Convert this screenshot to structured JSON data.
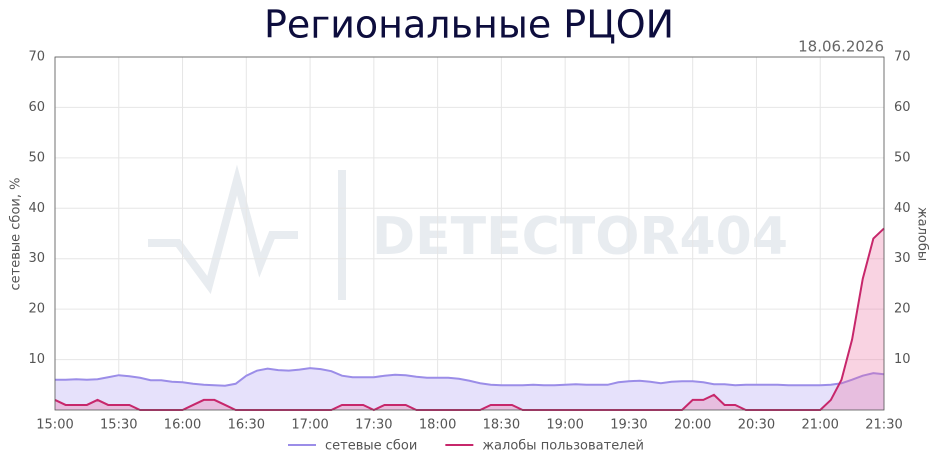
{
  "chart_data": {
    "type": "area",
    "title": "Региональные РЦОИ",
    "date": "18.06.2026",
    "watermark": "DETECTOR404",
    "ylabel": "сетевые сбои, %",
    "y2label": "жалобы",
    "x": [
      900,
      905,
      910,
      915,
      920,
      925,
      930,
      935,
      940,
      945,
      950,
      955,
      960,
      965,
      970,
      975,
      980,
      985,
      990,
      995,
      1000,
      1005,
      1010,
      1015,
      1020,
      1025,
      1030,
      1035,
      1040,
      1045,
      1050,
      1055,
      1060,
      1065,
      1070,
      1075,
      1080,
      1085,
      1090,
      1095,
      1100,
      1105,
      1110,
      1115,
      1120,
      1125,
      1130,
      1135,
      1140,
      1145,
      1150,
      1155,
      1160,
      1165,
      1170,
      1175,
      1180,
      1185,
      1190,
      1195,
      1200,
      1205,
      1210,
      1215,
      1220,
      1225,
      1230,
      1235,
      1240,
      1245,
      1250,
      1255,
      1260,
      1265,
      1270,
      1275,
      1280,
      1285,
      1290
    ],
    "xlim": [
      900,
      1290
    ],
    "xticks": [
      {
        "value": 900,
        "label": "15:00"
      },
      {
        "value": 930,
        "label": "15:30"
      },
      {
        "value": 960,
        "label": "16:00"
      },
      {
        "value": 990,
        "label": "16:30"
      },
      {
        "value": 1020,
        "label": "17:00"
      },
      {
        "value": 1050,
        "label": "17:30"
      },
      {
        "value": 1080,
        "label": "18:00"
      },
      {
        "value": 1110,
        "label": "18:30"
      },
      {
        "value": 1140,
        "label": "19:00"
      },
      {
        "value": 1170,
        "label": "19:30"
      },
      {
        "value": 1200,
        "label": "20:00"
      },
      {
        "value": 1230,
        "label": "20:30"
      },
      {
        "value": 1260,
        "label": "21:00"
      },
      {
        "value": 1290,
        "label": "21:30"
      }
    ],
    "ylim": [
      0,
      70
    ],
    "yticks": [
      10,
      20,
      30,
      40,
      50,
      60,
      70
    ],
    "y2lim": [
      0,
      70
    ],
    "y2ticks": [
      10,
      20,
      30,
      40,
      50,
      60,
      70
    ],
    "grid": true,
    "legend": "bottom",
    "series": [
      {
        "name": "сетевые сбои",
        "color": "#9b8de8",
        "fill": "#e6e1fb",
        "values": [
          6,
          6,
          6.1,
          6,
          6.1,
          6.5,
          6.9,
          6.7,
          6.4,
          5.9,
          5.9,
          5.6,
          5.5,
          5.2,
          5.0,
          4.9,
          4.8,
          5.2,
          6.8,
          7.8,
          8.2,
          7.9,
          7.8,
          8.0,
          8.3,
          8.1,
          7.7,
          6.8,
          6.5,
          6.5,
          6.5,
          6.8,
          7.0,
          6.9,
          6.6,
          6.4,
          6.4,
          6.4,
          6.2,
          5.8,
          5.3,
          5.0,
          4.9,
          4.9,
          4.9,
          5.0,
          4.9,
          4.9,
          5.0,
          5.1,
          5.0,
          5.0,
          5.0,
          5.5,
          5.7,
          5.8,
          5.6,
          5.3,
          5.6,
          5.7,
          5.7,
          5.5,
          5.1,
          5.1,
          4.9,
          5.0,
          5.0,
          5.0,
          5.0,
          4.9,
          4.9,
          4.9,
          4.9,
          5.0,
          5.3,
          6.0,
          6.8,
          7.3,
          7.1
        ]
      },
      {
        "name": "жалобы пользователей",
        "color": "#c7276b",
        "fill": "rgba(236,110,160,0.3)",
        "axis": "y2",
        "values": [
          2,
          1,
          1,
          1,
          2,
          1,
          1,
          1,
          0,
          0,
          0,
          0,
          0,
          1,
          2,
          2,
          1,
          0,
          0,
          0,
          0,
          0,
          0,
          0,
          0,
          0,
          0,
          1,
          1,
          1,
          0,
          1,
          1,
          1,
          0,
          0,
          0,
          0,
          0,
          0,
          0,
          1,
          1,
          1,
          0,
          0,
          0,
          0,
          0,
          0,
          0,
          0,
          0,
          0,
          0,
          0,
          0,
          0,
          0,
          0,
          2,
          2,
          3,
          1,
          1,
          0,
          0,
          0,
          0,
          0,
          0,
          0,
          0,
          2,
          6,
          14,
          26,
          34,
          36
        ]
      }
    ]
  }
}
